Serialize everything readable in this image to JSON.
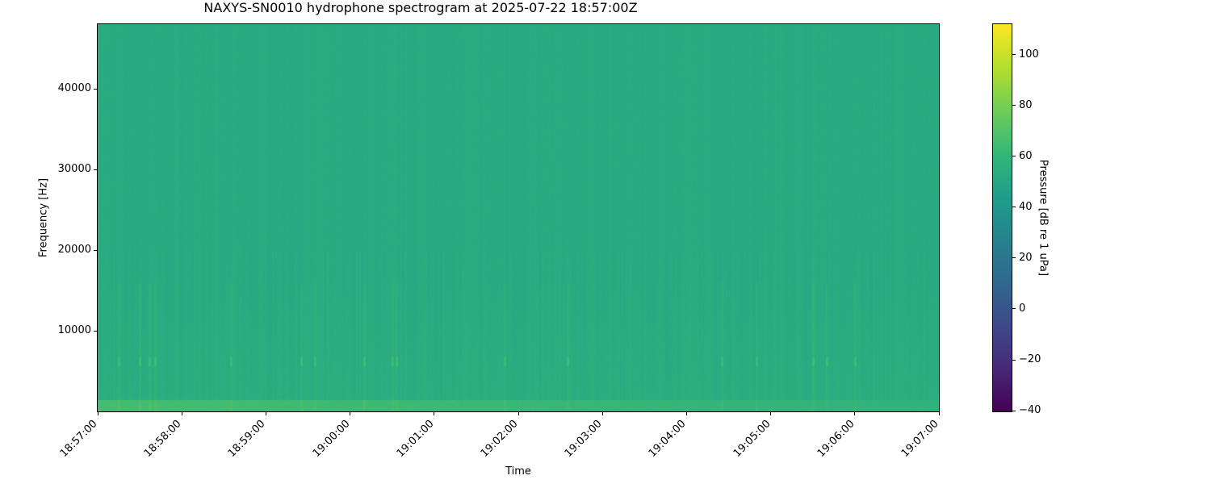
{
  "chart_data": {
    "type": "heatmap",
    "title": "NAXYS-SN0010 hydrophone spectrogram at 2025-07-22 18:57:00Z",
    "xlabel": "Time",
    "ylabel": "Frequency [Hz]",
    "colorbar_label": "Pressure [dB re 1 uPa]",
    "colormap": "viridis",
    "xlim": [
      "18:57:00",
      "19:07:00"
    ],
    "ylim": [
      0,
      48000
    ],
    "clim": [
      -40.3,
      112
    ],
    "x_ticks": [
      "18:57:00",
      "18:58:00",
      "18:59:00",
      "19:00:00",
      "19:01:00",
      "19:02:00",
      "19:03:00",
      "19:04:00",
      "19:05:00",
      "19:06:00",
      "19:07:00"
    ],
    "y_ticks": [
      10000,
      20000,
      30000,
      40000
    ],
    "colorbar_ticks": [
      -40,
      -20,
      0,
      20,
      40,
      60,
      80,
      100
    ],
    "background_level_db": 53,
    "low_frequency_band": {
      "max_hz": 1500,
      "level_db": 66
    },
    "tonal_events": {
      "frequency_hz": 6200,
      "level_db": 64,
      "times": [
        "18:57:15",
        "18:57:30",
        "18:57:37",
        "18:57:41",
        "18:58:35",
        "18:59:25",
        "18:59:35",
        "19:00:10",
        "19:00:30",
        "19:00:33",
        "19:01:50",
        "19:02:35",
        "19:04:25",
        "19:04:50",
        "19:05:30",
        "19:05:40",
        "19:06:00"
      ]
    },
    "grid": false
  }
}
